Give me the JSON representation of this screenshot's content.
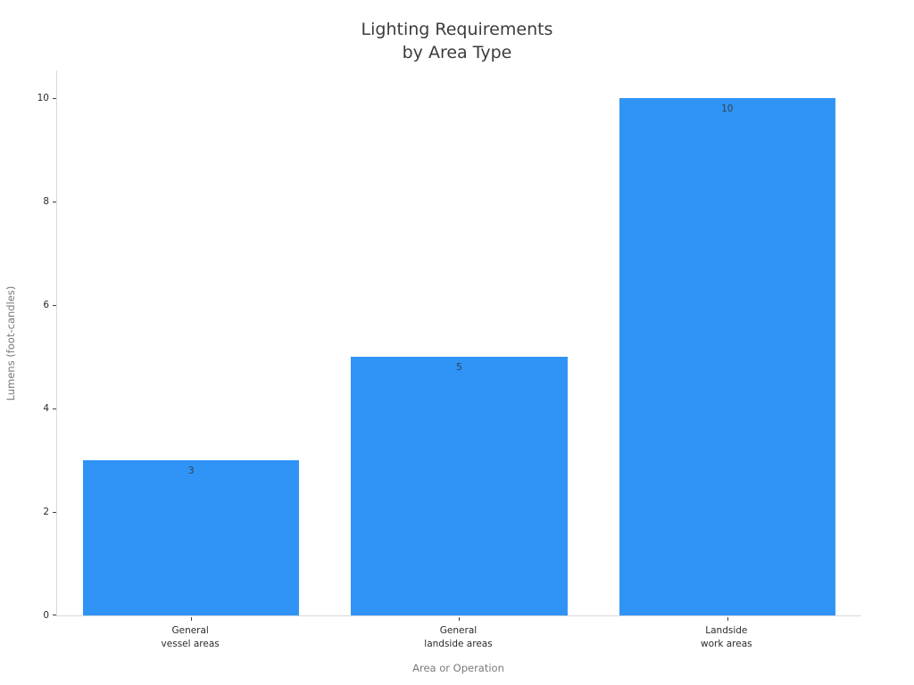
{
  "chart_data": {
    "type": "bar",
    "title": "Lighting Requirements\nby Area Type",
    "title_lines": [
      "Lighting Requirements",
      "by Area Type"
    ],
    "categories": [
      "General\nvessel areas",
      "General\nlandside areas",
      "Landside\nwork areas"
    ],
    "values": [
      3,
      5,
      10
    ],
    "value_labels": [
      "3",
      "5",
      "10"
    ],
    "xlabel": "Area or Operation",
    "ylabel": "Lumens (foot-candles)",
    "ylim": [
      0,
      10
    ],
    "yticks": [
      0,
      2,
      4,
      6,
      8,
      10
    ],
    "bar_color": "#2f94f5",
    "grid": false,
    "legend": "none"
  },
  "colors": {
    "background": "#ffffff",
    "bar": "#2f94f5",
    "spine": "#d9d9d9",
    "tick": "#3f3f3f",
    "text": "#2b2b2b",
    "muted_text": "#7a7a7a",
    "title": "#3c3c3c"
  }
}
